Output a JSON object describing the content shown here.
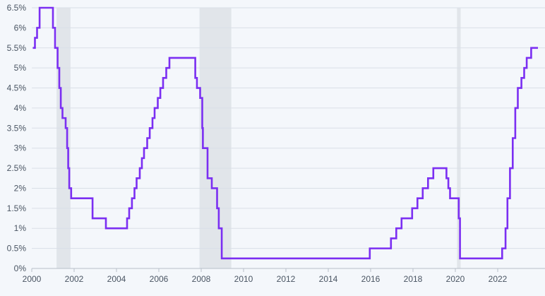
{
  "chart_data": {
    "type": "line",
    "title": "",
    "xlabel": "",
    "ylabel": "",
    "xlim": [
      2000.0,
      2023.9
    ],
    "ylim": [
      0,
      6.5
    ],
    "y_tick_values": [
      0,
      0.5,
      1,
      1.5,
      2,
      2.5,
      3,
      3.5,
      4,
      4.5,
      5,
      5.5,
      6,
      6.5
    ],
    "y_tick_labels": [
      "0%",
      "0.5%",
      "1%",
      "1.5%",
      "2%",
      "2.5%",
      "3%",
      "3.5%",
      "4%",
      "4.5%",
      "5%",
      "5.5%",
      "6%",
      "6.5%"
    ],
    "x_tick_values": [
      2000,
      2002,
      2004,
      2006,
      2008,
      2010,
      2012,
      2014,
      2016,
      2018,
      2020,
      2022
    ],
    "x_tick_labels": [
      "2000",
      "2002",
      "2004",
      "2006",
      "2008",
      "2010",
      "2012",
      "2014",
      "2016",
      "2018",
      "2020",
      "2022"
    ],
    "grid": "horizontal",
    "line_color": "#7b2ff2",
    "recession_color": "#e1e5ea",
    "recessions": [
      [
        2001.17,
        2001.83
      ],
      [
        2007.92,
        2009.42
      ],
      [
        2020.08,
        2020.25
      ]
    ],
    "series": [
      {
        "step": true,
        "x": [
          2000.05,
          2000.15,
          2000.25,
          2000.37,
          2001.0,
          2001.1,
          2001.22,
          2001.3,
          2001.37,
          2001.45,
          2001.6,
          2001.67,
          2001.72,
          2001.77,
          2001.86,
          2001.95,
          2002.87,
          2003.5,
          2004.5,
          2004.6,
          2004.73,
          2004.85,
          2004.95,
          2005.1,
          2005.2,
          2005.3,
          2005.45,
          2005.57,
          2005.7,
          2005.8,
          2005.95,
          2006.07,
          2006.2,
          2006.35,
          2006.5,
          2007.72,
          2007.8,
          2007.95,
          2008.05,
          2008.08,
          2008.3,
          2008.5,
          2008.75,
          2008.83,
          2008.97,
          2015.96,
          2016.96,
          2017.21,
          2017.46,
          2017.96,
          2018.21,
          2018.46,
          2018.71,
          2018.96,
          2019.58,
          2019.67,
          2019.75,
          2020.16,
          2020.22,
          2022.21,
          2022.37,
          2022.46,
          2022.58,
          2022.71,
          2022.83,
          2022.95,
          2023.12,
          2023.25,
          2023.37,
          2023.58,
          2023.9
        ],
        "y": [
          5.5,
          5.75,
          6.0,
          6.5,
          6.0,
          5.5,
          5.0,
          4.5,
          4.0,
          3.75,
          3.5,
          3.0,
          2.5,
          2.0,
          1.75,
          1.75,
          1.25,
          1.0,
          1.25,
          1.5,
          1.75,
          2.0,
          2.25,
          2.5,
          2.75,
          3.0,
          3.25,
          3.5,
          3.75,
          4.0,
          4.25,
          4.5,
          4.75,
          5.0,
          5.25,
          4.75,
          4.5,
          4.25,
          3.5,
          3.0,
          2.25,
          2.0,
          1.5,
          1.0,
          0.25,
          0.5,
          0.75,
          1.0,
          1.25,
          1.5,
          1.75,
          2.0,
          2.25,
          2.5,
          2.25,
          2.0,
          1.75,
          1.25,
          0.25,
          0.5,
          1.0,
          1.75,
          2.5,
          3.25,
          4.0,
          4.5,
          4.75,
          5.0,
          5.25,
          5.5,
          5.5
        ]
      }
    ]
  }
}
